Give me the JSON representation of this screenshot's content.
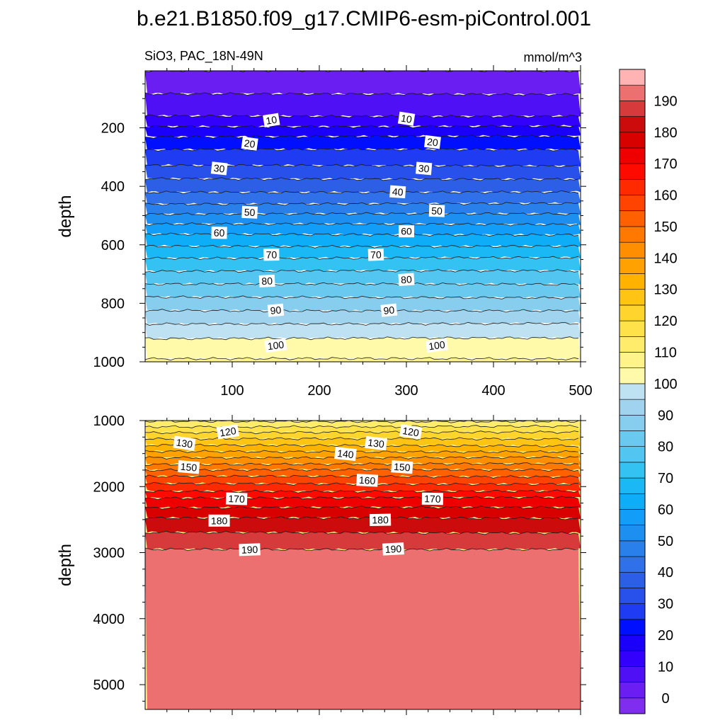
{
  "title": "b.e21.B1850.f09_g17.CMIP6-esm-piControl.001",
  "subtitle_left": "SiO3, PAC_18N-49N",
  "subtitle_right": "mmol/m^3",
  "colorbar": {
    "levels": [
      0,
      5,
      10,
      15,
      20,
      25,
      30,
      35,
      40,
      45,
      50,
      55,
      60,
      65,
      70,
      75,
      80,
      85,
      90,
      95,
      100,
      105,
      110,
      115,
      120,
      125,
      130,
      135,
      140,
      145,
      150,
      155,
      160,
      165,
      170,
      175,
      180,
      185,
      190,
      195
    ],
    "colors": [
      "#7f2ef0",
      "#6a1ef2",
      "#5010f6",
      "#3200fb",
      "#1a00fb",
      "#0010ff",
      "#1f3cf2",
      "#2850eb",
      "#2d5fe6",
      "#3070e8",
      "#2a80ea",
      "#1d8ff0",
      "#129ef8",
      "#0eadf8",
      "#1ab9f5",
      "#33c2f2",
      "#52c6f0",
      "#6ac9ef",
      "#86cdee",
      "#a0d4ee",
      "#bfe2f3",
      "#fffaaa",
      "#fff38a",
      "#ffec6a",
      "#ffe24a",
      "#ffd42c",
      "#ffc414",
      "#ffb300",
      "#ffa100",
      "#ff8f00",
      "#ff7800",
      "#ff6000",
      "#ff4300",
      "#ff2a00",
      "#ff0a00",
      "#ee0000",
      "#d90000",
      "#cc0c0c",
      "#d63a3a",
      "#ed7070",
      "#ffb3b3"
    ],
    "tick_labels": [
      "0",
      "10",
      "20",
      "30",
      "40",
      "50",
      "60",
      "70",
      "80",
      "90",
      "100",
      "110",
      "120",
      "130",
      "140",
      "150",
      "160",
      "170",
      "180",
      "190"
    ]
  },
  "chart_data": [
    {
      "type": "heatmap",
      "panel": "top",
      "xlabel": "",
      "ylabel": "depth",
      "xlim": [
        0,
        500
      ],
      "ylim": [
        1000,
        5
      ],
      "x_ticks": [
        100,
        200,
        300,
        400,
        500
      ],
      "y_ticks": [
        200,
        400,
        600,
        800,
        1000
      ],
      "grid": false,
      "contour_depths": [
        {
          "value": 0,
          "depth": 5
        },
        {
          "value": 5,
          "depth": 85
        },
        {
          "value": 10,
          "depth": 160
        },
        {
          "value": 15,
          "depth": 195
        },
        {
          "value": 20,
          "depth": 230
        },
        {
          "value": 25,
          "depth": 275
        },
        {
          "value": 30,
          "depth": 330
        },
        {
          "value": 35,
          "depth": 375
        },
        {
          "value": 40,
          "depth": 420
        },
        {
          "value": 45,
          "depth": 460
        },
        {
          "value": 50,
          "depth": 495
        },
        {
          "value": 55,
          "depth": 530
        },
        {
          "value": 60,
          "depth": 565
        },
        {
          "value": 65,
          "depth": 605
        },
        {
          "value": 70,
          "depth": 645
        },
        {
          "value": 75,
          "depth": 690
        },
        {
          "value": 80,
          "depth": 735
        },
        {
          "value": 85,
          "depth": 780
        },
        {
          "value": 90,
          "depth": 825
        },
        {
          "value": 95,
          "depth": 870
        },
        {
          "value": 100,
          "depth": 920
        },
        {
          "value": 105,
          "depth": 990
        }
      ],
      "labels": [
        {
          "text": "10",
          "x": 145,
          "depth": 175
        },
        {
          "text": "10",
          "x": 300,
          "depth": 170
        },
        {
          "text": "20",
          "x": 120,
          "depth": 255
        },
        {
          "text": "20",
          "x": 330,
          "depth": 250
        },
        {
          "text": "30",
          "x": 85,
          "depth": 340
        },
        {
          "text": "30",
          "x": 320,
          "depth": 340
        },
        {
          "text": "40",
          "x": 290,
          "depth": 420
        },
        {
          "text": "50",
          "x": 120,
          "depth": 490
        },
        {
          "text": "50",
          "x": 335,
          "depth": 485
        },
        {
          "text": "60",
          "x": 85,
          "depth": 560
        },
        {
          "text": "60",
          "x": 300,
          "depth": 555
        },
        {
          "text": "70",
          "x": 145,
          "depth": 635
        },
        {
          "text": "70",
          "x": 265,
          "depth": 635
        },
        {
          "text": "80",
          "x": 140,
          "depth": 725
        },
        {
          "text": "80",
          "x": 300,
          "depth": 720
        },
        {
          "text": "90",
          "x": 150,
          "depth": 825
        },
        {
          "text": "90",
          "x": 280,
          "depth": 825
        },
        {
          "text": "100",
          "x": 150,
          "depth": 945
        },
        {
          "text": "100",
          "x": 335,
          "depth": 945
        }
      ]
    },
    {
      "type": "heatmap",
      "panel": "bottom",
      "xlabel": "",
      "ylabel": "depth",
      "xlim": [
        0,
        500
      ],
      "ylim": [
        5375,
        1000
      ],
      "y_ticks": [
        1000,
        2000,
        3000,
        4000,
        5000
      ],
      "grid": false,
      "contour_depths": [
        {
          "value": 105,
          "depth": 1000
        },
        {
          "value": 110,
          "depth": 1010
        },
        {
          "value": 115,
          "depth": 1090
        },
        {
          "value": 120,
          "depth": 1180
        },
        {
          "value": 125,
          "depth": 1280
        },
        {
          "value": 130,
          "depth": 1380
        },
        {
          "value": 135,
          "depth": 1470
        },
        {
          "value": 140,
          "depth": 1560
        },
        {
          "value": 145,
          "depth": 1660
        },
        {
          "value": 150,
          "depth": 1750
        },
        {
          "value": 155,
          "depth": 1850
        },
        {
          "value": 160,
          "depth": 1960
        },
        {
          "value": 165,
          "depth": 2070
        },
        {
          "value": 170,
          "depth": 2170
        },
        {
          "value": 175,
          "depth": 2320
        },
        {
          "value": 180,
          "depth": 2480
        },
        {
          "value": 185,
          "depth": 2700
        },
        {
          "value": 190,
          "depth": 2950
        }
      ],
      "labels": [
        {
          "text": "120",
          "x": 95,
          "depth": 1175
        },
        {
          "text": "120",
          "x": 305,
          "depth": 1175
        },
        {
          "text": "130",
          "x": 45,
          "depth": 1350
        },
        {
          "text": "130",
          "x": 265,
          "depth": 1350
        },
        {
          "text": "140",
          "x": 230,
          "depth": 1510
        },
        {
          "text": "150",
          "x": 50,
          "depth": 1710
        },
        {
          "text": "150",
          "x": 295,
          "depth": 1710
        },
        {
          "text": "160",
          "x": 255,
          "depth": 1910
        },
        {
          "text": "170",
          "x": 105,
          "depth": 2190
        },
        {
          "text": "170",
          "x": 330,
          "depth": 2190
        },
        {
          "text": "180",
          "x": 85,
          "depth": 2520
        },
        {
          "text": "180",
          "x": 270,
          "depth": 2510
        },
        {
          "text": "190",
          "x": 120,
          "depth": 2960
        },
        {
          "text": "190",
          "x": 285,
          "depth": 2950
        }
      ]
    }
  ]
}
